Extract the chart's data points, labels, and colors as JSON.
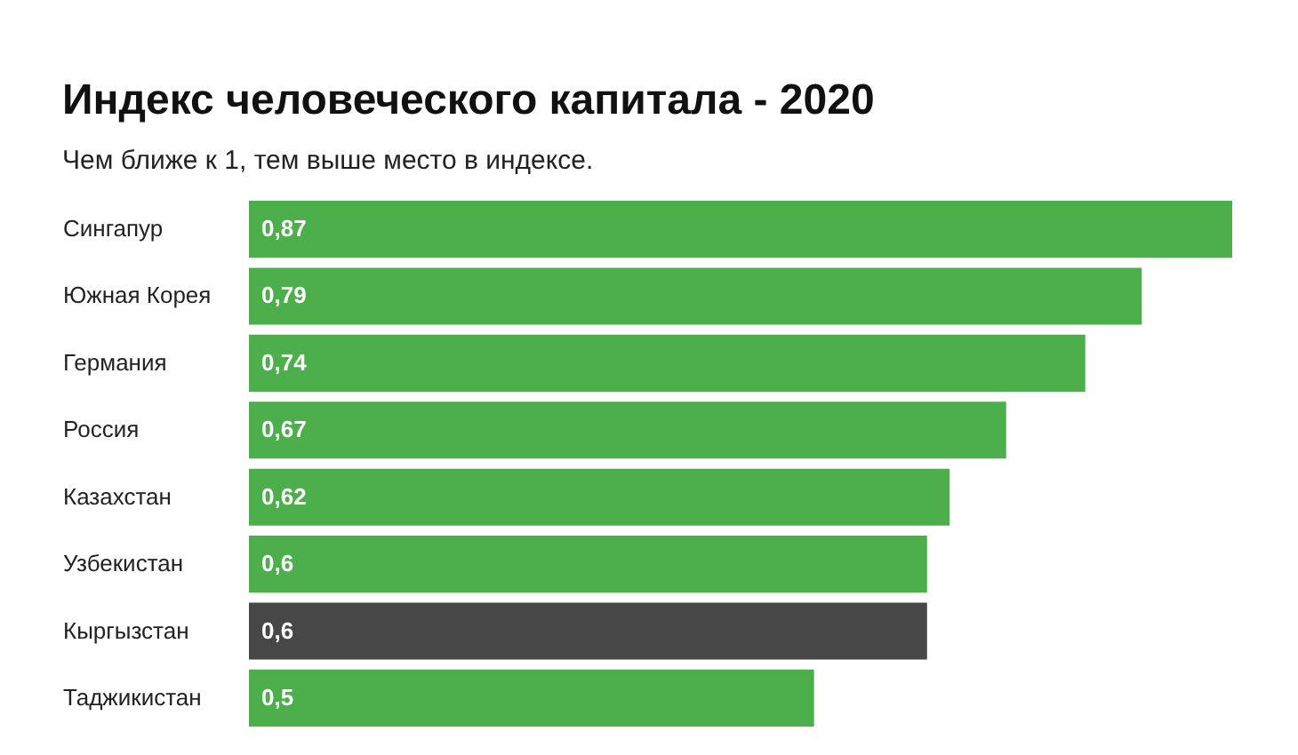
{
  "chart_data": {
    "type": "bar",
    "orientation": "horizontal",
    "xlim": [
      0,
      0.87
    ],
    "title": "Индекс человеческого капитала - 2020",
    "subtitle": "Чем ближе к 1, тем выше место в индексе.",
    "categories": [
      "Сингапур",
      "Южная Корея",
      "Германия",
      "Россия",
      "Казахстан",
      "Узбекистан",
      "Кыргызстан",
      "Таджикистан"
    ],
    "values": [
      0.87,
      0.79,
      0.74,
      0.67,
      0.62,
      0.6,
      0.6,
      0.5
    ],
    "value_labels": [
      "0,87",
      "0,79",
      "0,74",
      "0,67",
      "0,62",
      "0,6",
      "0,6",
      "0,5"
    ],
    "colors": [
      "#4caf4c",
      "#4caf4c",
      "#4caf4c",
      "#4caf4c",
      "#4caf4c",
      "#4caf4c",
      "#474747",
      "#4caf4c"
    ]
  }
}
